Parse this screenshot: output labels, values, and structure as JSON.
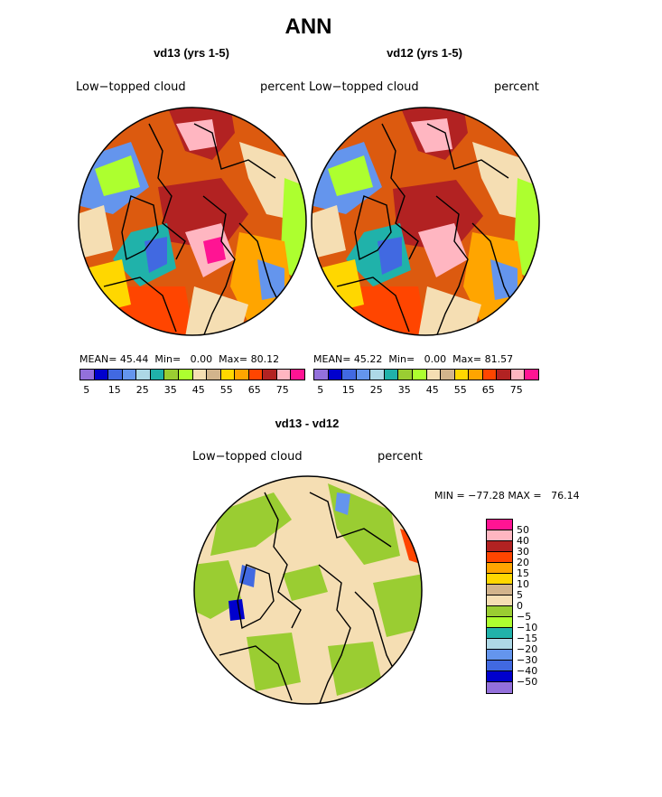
{
  "title": "ANN",
  "panels": [
    {
      "title": "vd13 (yrs 1-5)",
      "left_label": "Low−topped cloud",
      "right_label": "percent",
      "mean_label": "MEAN=",
      "mean": "45.44",
      "min_label": "Min=",
      "min": "0.00",
      "max_label": "Max=",
      "max": "80.12",
      "base_color": "#dc5a0f"
    },
    {
      "title": "vd12 (yrs 1-5)",
      "left_label": "Low−topped cloud",
      "right_label": "percent",
      "mean_label": "MEAN=",
      "mean": "45.22",
      "min_label": "Min=",
      "min": "0.00",
      "max_label": "Max=",
      "max": "81.57",
      "base_color": "#dc5a0f"
    }
  ],
  "diff_panel": {
    "title": "vd13 - vd12",
    "left_label": "Low−topped cloud",
    "right_label": "percent",
    "minmax_text": "MIN = −77.28 MAX =   76.14",
    "base_color": "#f5deb3"
  },
  "main_colorbar": {
    "colors": [
      "#9370db",
      "#0000cd",
      "#4169e1",
      "#6495ed",
      "#add8e6",
      "#20b2aa",
      "#9acd32",
      "#adff2f",
      "#f5deb3",
      "#d2b48c",
      "#ffd700",
      "#ffa500",
      "#ff4500",
      "#b22222",
      "#ffb6c1",
      "#ff1493"
    ],
    "tick_labels": [
      "5",
      "15",
      "25",
      "35",
      "45",
      "55",
      "65",
      "75"
    ]
  },
  "diff_colorbar": {
    "colors": [
      "#ff1493",
      "#ffb6c1",
      "#b22222",
      "#ff4500",
      "#ffa500",
      "#ffd700",
      "#d2b48c",
      "#f5deb3",
      "#9acd32",
      "#adff2f",
      "#20b2aa",
      "#add8e6",
      "#6495ed",
      "#4169e1",
      "#0000cd",
      "#9370db"
    ],
    "tick_labels": [
      "50",
      "40",
      "30",
      "20",
      "15",
      "10",
      "5",
      "0",
      "−5",
      "−10",
      "−15",
      "−20",
      "−30",
      "−40",
      "−50"
    ]
  }
}
